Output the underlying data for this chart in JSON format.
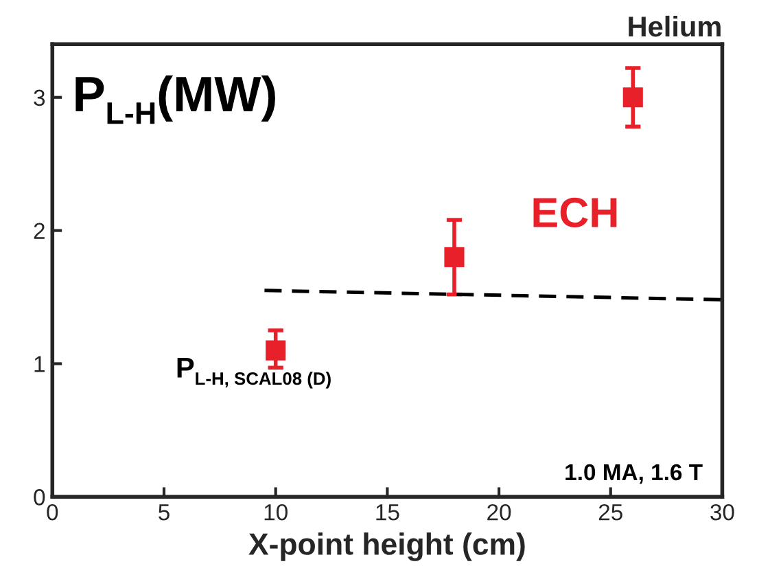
{
  "chart_data": {
    "type": "scatter",
    "title": "Helium",
    "xlabel": "X-point height (cm)",
    "x": [
      10,
      18,
      26
    ],
    "series": [
      {
        "name": "ECH",
        "color": "#e8202a",
        "marker": "square",
        "values": [
          1.1,
          1.8,
          3.0
        ],
        "errors": [
          [
            0.97,
            1.25
          ],
          [
            1.52,
            2.08
          ],
          [
            2.78,
            3.22
          ]
        ]
      },
      {
        "name": "P$_{L-H, SCAL08 (D)}$",
        "type": "line",
        "color": "#000000",
        "marker": "none",
        "line_style": "dashed",
        "x": [
          9.5,
          30
        ],
        "values": [
          1.55,
          1.48
        ]
      }
    ],
    "annotations": [
      "P$_{L-H}$(MW)",
      "1.0 MA, 1.6 T"
    ],
    "xlim": [
      0,
      30
    ],
    "ylim": [
      0,
      3.4
    ],
    "xticks": [
      0,
      5,
      10,
      15,
      20,
      25,
      30
    ],
    "yticks": [
      0,
      1,
      2,
      3
    ],
    "grid": false,
    "legend": false
  }
}
